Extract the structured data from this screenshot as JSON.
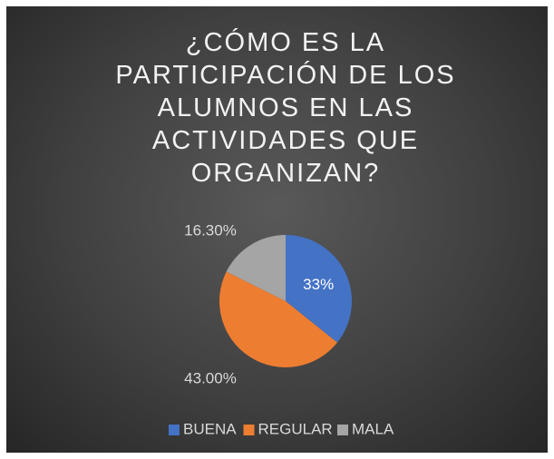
{
  "chart_data": {
    "type": "pie",
    "title": "¿CÓMO ES LA PARTICIPACIÓN DE LOS ALUMNOS EN LAS ACTIVIDADES QUE ORGANIZAN?",
    "categories": [
      "BUENA",
      "REGULAR",
      "MALA"
    ],
    "values": [
      33,
      43,
      16.3
    ],
    "value_labels": [
      "33%",
      "43.00%",
      "16.30%"
    ],
    "colors": [
      "#4472c4",
      "#ed7d31",
      "#a5a5a5"
    ],
    "legend": "bottom"
  }
}
